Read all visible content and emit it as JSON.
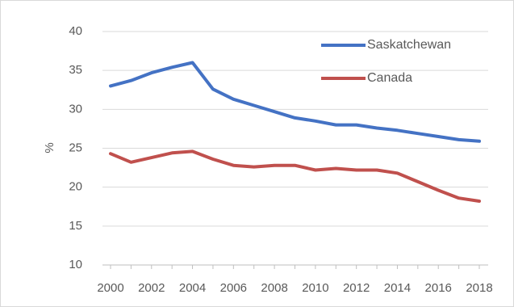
{
  "chart_data": {
    "type": "line",
    "title": "",
    "xlabel": "",
    "ylabel": "%",
    "ylim": [
      10,
      40
    ],
    "yticks": [
      "10",
      "15",
      "20",
      "25",
      "30",
      "35",
      "40"
    ],
    "xtick_labels": [
      "2000",
      "2002",
      "2004",
      "2006",
      "2008",
      "2010",
      "2012",
      "2014",
      "2016",
      "2018"
    ],
    "x": [
      2000,
      2001,
      2002,
      2003,
      2004,
      2005,
      2006,
      2007,
      2008,
      2009,
      2010,
      2011,
      2012,
      2013,
      2014,
      2015,
      2016,
      2017,
      2018
    ],
    "grid": true,
    "legend_position": "top-right",
    "series": [
      {
        "name": "Saskatchewan",
        "color": "#4472c4",
        "values": [
          33.0,
          33.7,
          34.7,
          35.4,
          36.0,
          32.6,
          31.3,
          30.5,
          29.7,
          28.9,
          28.5,
          28.0,
          28.0,
          27.6,
          27.3,
          26.9,
          26.5,
          26.1,
          25.9
        ]
      },
      {
        "name": "Canada",
        "color": "#c0504d",
        "values": [
          24.3,
          23.2,
          23.8,
          24.4,
          24.6,
          23.6,
          22.8,
          22.6,
          22.8,
          22.8,
          22.2,
          22.4,
          22.2,
          22.2,
          21.8,
          20.7,
          19.6,
          18.6,
          18.2
        ]
      }
    ]
  }
}
